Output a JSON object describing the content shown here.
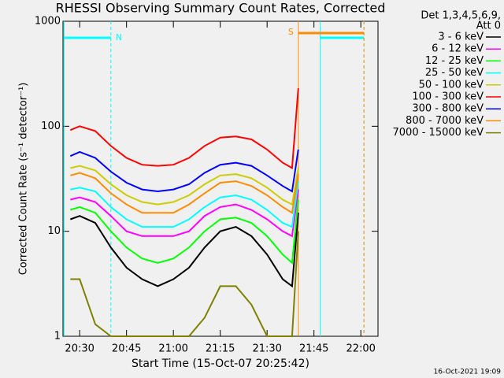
{
  "chart_data": {
    "type": "line",
    "title": "RHESSI Observing Summary Count Rates, Corrected",
    "xlabel": "Start Time (15-Oct-07 20:25:42)",
    "ylabel": "Corrected Count Rate (s⁻¹ detector⁻¹)",
    "legend_title": [
      "Det 1,3,4,5,6,9,",
      "Att 0"
    ],
    "footer": "16-Oct-2021 19:09",
    "yscale": "log",
    "ylim": [
      1,
      1000
    ],
    "yticks": [
      1,
      10,
      100,
      1000
    ],
    "xlim": [
      "20:24:40",
      "22:05:30"
    ],
    "xticks": [
      "20:30",
      "20:45",
      "21:00",
      "21:15",
      "21:30",
      "21:45",
      "22:00"
    ],
    "legend": "outside-right",
    "x": [
      "20:27",
      "20:30",
      "20:35",
      "20:40",
      "20:45",
      "20:50",
      "20:55",
      "21:00",
      "21:05",
      "21:10",
      "21:15",
      "21:20",
      "21:25",
      "21:30",
      "21:35",
      "21:38",
      "21:40"
    ],
    "series": [
      {
        "name": "3 - 6 keV",
        "color": "#000000",
        "values": [
          13,
          14,
          12,
          7,
          4.5,
          3.5,
          3,
          3.5,
          4.5,
          7,
          10,
          11,
          9,
          6,
          3.5,
          3,
          15
        ]
      },
      {
        "name": "6 - 12 keV",
        "color": "#ff00ff",
        "values": [
          20,
          21,
          19,
          14,
          10,
          9,
          9,
          9,
          10,
          14,
          17,
          18,
          16,
          13,
          10,
          9,
          25
        ]
      },
      {
        "name": "12 - 25 keV",
        "color": "#00ff00",
        "values": [
          16,
          17,
          15,
          10,
          7,
          5.5,
          5,
          5.5,
          7,
          10,
          13,
          13.5,
          12,
          9,
          6,
          5,
          20
        ]
      },
      {
        "name": "25 - 50 keV",
        "color": "#00ffff",
        "values": [
          25,
          26,
          24,
          17,
          13,
          11,
          11,
          11,
          13,
          17,
          21,
          22,
          20,
          16,
          12,
          11,
          30
        ]
      },
      {
        "name": "50 - 100 keV",
        "color": "#cccc00",
        "values": [
          40,
          42,
          38,
          28,
          22,
          19,
          18,
          19,
          22,
          28,
          34,
          35,
          32,
          26,
          20,
          18,
          40
        ]
      },
      {
        "name": "100 - 300 keV",
        "color": "#ff0000",
        "values": [
          92,
          100,
          90,
          65,
          50,
          43,
          42,
          43,
          50,
          65,
          78,
          80,
          75,
          60,
          45,
          40,
          230
        ]
      },
      {
        "name": "300 - 800 keV",
        "color": "#0000ff",
        "values": [
          52,
          57,
          50,
          37,
          29,
          25,
          24,
          25,
          28,
          36,
          43,
          45,
          42,
          34,
          27,
          24,
          60
        ]
      },
      {
        "name": "800 - 7000 keV",
        "color": "#ff8c00",
        "values": [
          34,
          36,
          32,
          23,
          18,
          15,
          15,
          15,
          18,
          23,
          29,
          30,
          27,
          22,
          17,
          15,
          35
        ]
      },
      {
        "name": "7000 - 15000 keV",
        "color": "#808000",
        "values": [
          3.5,
          3.5,
          1.3,
          1,
          1,
          1,
          1,
          1,
          1,
          1.5,
          3,
          3,
          2,
          1,
          1,
          1,
          10
        ]
      }
    ],
    "night": [
      {
        "text": "N",
        "start": "20:25",
        "end": "20:40",
        "color": "#00ffff"
      },
      {
        "start": "21:47",
        "end": "22:01",
        "color": "#00ffff"
      }
    ],
    "saa": {
      "text": "S",
      "start": "21:40",
      "end": "22:01",
      "color": "#ff8c00"
    }
  }
}
